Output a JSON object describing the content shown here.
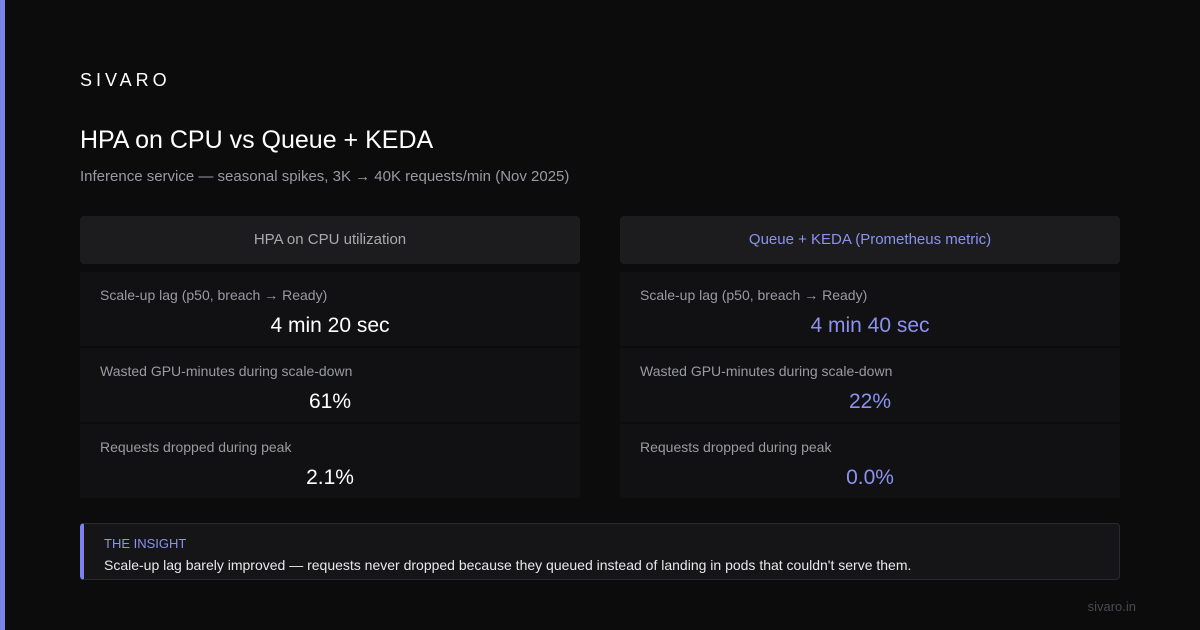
{
  "brand": "SIVARO",
  "title": "HPA on CPU vs Queue + KEDA",
  "subtitle": "Inference service — seasonal spikes, 3K → 40K requests/min (Nov 2025)",
  "columns": [
    {
      "heading": "HPA on CPU utilization",
      "rows": [
        {
          "label": "Scale-up lag (p50, breach → Ready)",
          "value": "4 min 20 sec"
        },
        {
          "label": "Wasted GPU-minutes during scale-down",
          "value": "61%"
        },
        {
          "label": "Requests dropped during peak",
          "value": "2.1%"
        }
      ]
    },
    {
      "heading": "Queue + KEDA (Prometheus metric)",
      "rows": [
        {
          "label": "Scale-up lag (p50, breach → Ready)",
          "value": "4 min 40 sec"
        },
        {
          "label": "Wasted GPU-minutes during scale-down",
          "value": "22%"
        },
        {
          "label": "Requests dropped during peak",
          "value": "0.0%"
        }
      ]
    }
  ],
  "insight": {
    "label": "THE INSIGHT",
    "text": "Scale-up lag barely improved — requests never dropped because they queued instead of landing in pods that couldn't serve them."
  },
  "footer": "sivaro.in"
}
